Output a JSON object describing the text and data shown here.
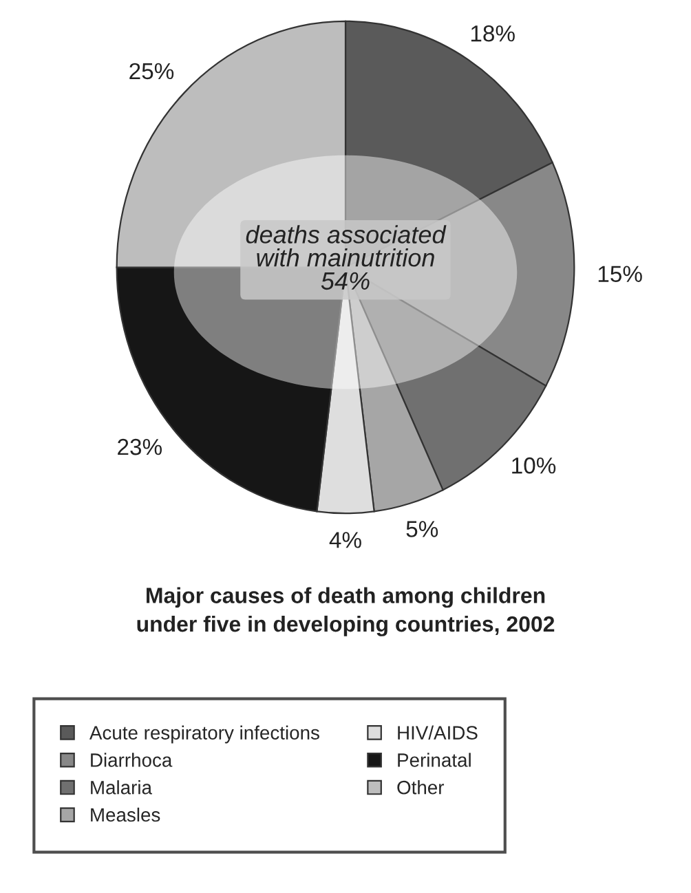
{
  "chart_data": {
    "type": "pie",
    "title": "Major causes of death among children\nunder five in developing countries, 2002",
    "categories": [
      "Acute respiratory infections",
      "Diarrhoca",
      "Malaria",
      "Measles",
      "HIV/AIDS",
      "Perinatal",
      "Other"
    ],
    "values": [
      18,
      15,
      10,
      5,
      4,
      23,
      25
    ],
    "value_labels": [
      "18%",
      "15%",
      "10%",
      "5%",
      "4%",
      "23%",
      "25%"
    ],
    "colors": [
      "#5a5a5a",
      "#888888",
      "#707070",
      "#a6a6a6",
      "#dedede",
      "#161616",
      "#bdbdbd"
    ],
    "annotations": [
      "deaths associated\nwith mainutrition\n54%"
    ],
    "legend": "bottom"
  }
}
